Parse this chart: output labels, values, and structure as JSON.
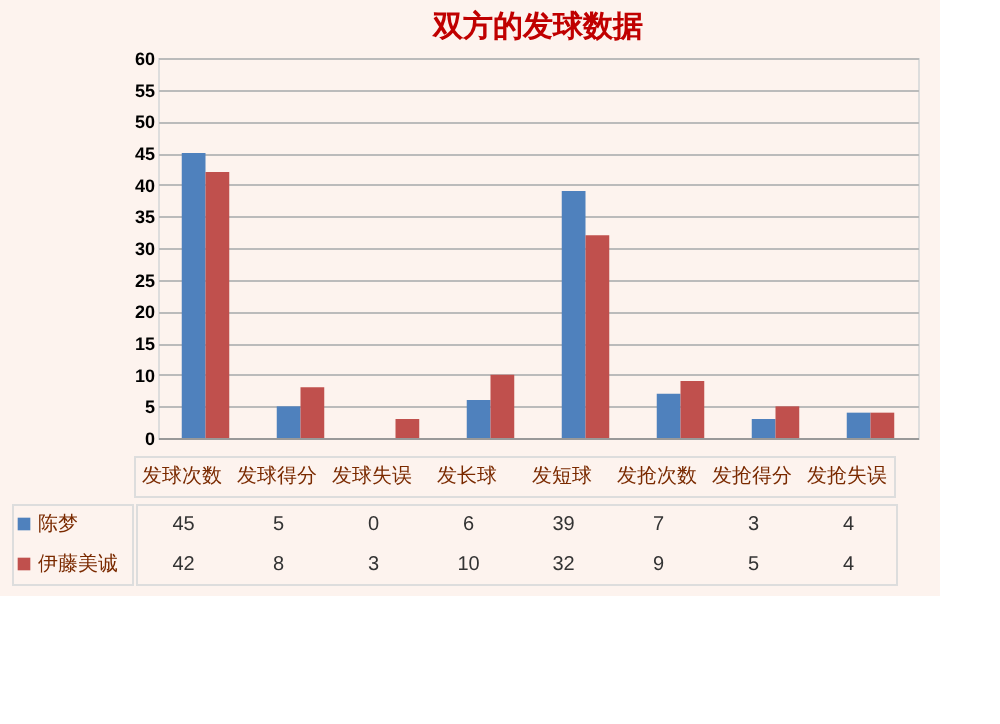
{
  "chart_data": {
    "type": "bar",
    "title": "双方的发球数据",
    "categories": [
      "发球次数",
      "发球得分",
      "发球失误",
      "发长球",
      "发短球",
      "发抢次数",
      "发抢得分",
      "发抢失误"
    ],
    "series": [
      {
        "name": "陈梦",
        "color": "#4f81bd",
        "values": [
          45,
          5,
          0,
          6,
          39,
          7,
          3,
          4
        ]
      },
      {
        "name": "伊藤美诚",
        "color": "#c0504d",
        "values": [
          42,
          8,
          3,
          10,
          32,
          9,
          5,
          4
        ]
      }
    ],
    "ylim": [
      0,
      60
    ],
    "yticks": [
      0,
      5,
      10,
      15,
      20,
      25,
      30,
      35,
      40,
      45,
      50,
      55,
      60
    ],
    "grid": "y",
    "data_labels": true,
    "legend": "bottom left"
  }
}
